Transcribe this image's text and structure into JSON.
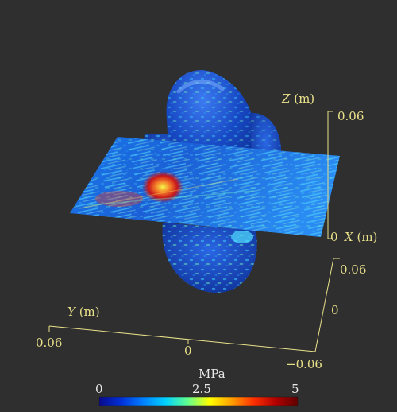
{
  "axes": {
    "z_label": "Z (m)",
    "z_var": "Z",
    "z_unit": "(m)",
    "z_tick_top": "0.06",
    "x_label": "X (m)",
    "x_var": "X",
    "x_unit": "(m)",
    "x_tick_zero": "0",
    "x_tick_pos": "0.06",
    "x_tick_mid": "0",
    "x_tick_neg": "−0.06",
    "y_label": "Y (m)",
    "y_var": "Y",
    "y_unit": "(m)",
    "y_tick_left": "0.06",
    "y_tick_mid": "0"
  },
  "colorbar": {
    "title": "MPa",
    "min_label": "0",
    "mid_label": "2.5",
    "max_label": "5",
    "stops": [
      "#0a0a8c",
      "#0030d8",
      "#0080ff",
      "#00d0ff",
      "#60ff90",
      "#ffff00",
      "#ffa000",
      "#ff3000",
      "#b00000",
      "#600000"
    ]
  },
  "colors": {
    "background": "#2f2f2f",
    "axis": "#e9e18a",
    "surface_base": "#1646c8",
    "slice_base": "#1c6fe0"
  }
}
